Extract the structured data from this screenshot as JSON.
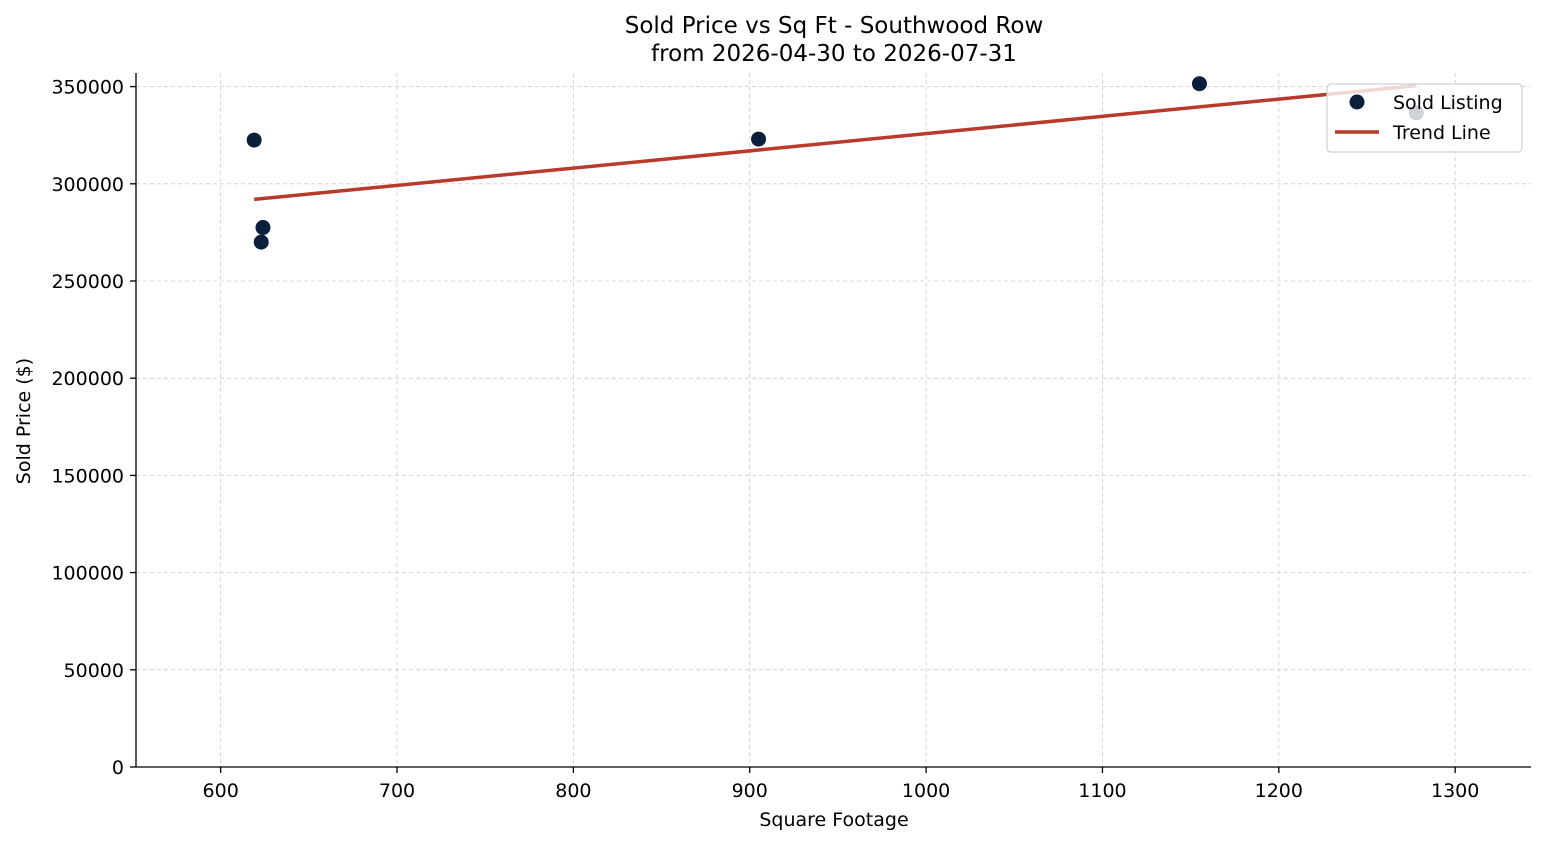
{
  "chart_data": {
    "type": "scatter",
    "title": "Sold Price vs Sq Ft - Southwood Row",
    "subtitle": "from 2026-04-30 to 2026-07-31",
    "xlabel": "Square Footage",
    "ylabel": "Sold Price ($)",
    "xlim": [
      552,
      1343
    ],
    "ylim": [
      0,
      357000
    ],
    "x_ticks": [
      600,
      700,
      800,
      900,
      1000,
      1100,
      1200,
      1300
    ],
    "y_ticks": [
      0,
      50000,
      100000,
      150000,
      200000,
      250000,
      300000,
      350000
    ],
    "x_tick_labels": [
      "600",
      "700",
      "800",
      "900",
      "1000",
      "1100",
      "1200",
      "1300"
    ],
    "y_tick_labels": [
      "0",
      "50000",
      "100000",
      "150000",
      "200000",
      "250000",
      "300000",
      "350000"
    ],
    "grid": true,
    "legend_position": "top-right",
    "series": [
      {
        "name": "Sold Listing",
        "kind": "scatter",
        "color": "#0b1f3a",
        "points": [
          {
            "x": 619,
            "y": 322500
          },
          {
            "x": 623,
            "y": 270000
          },
          {
            "x": 624,
            "y": 277500
          },
          {
            "x": 905,
            "y": 323000
          },
          {
            "x": 1155,
            "y": 351500
          },
          {
            "x": 1278,
            "y": 336500
          }
        ]
      },
      {
        "name": "Trend Line",
        "kind": "line",
        "color": "#b83a2b",
        "points": [
          {
            "x": 619,
            "y": 292000
          },
          {
            "x": 1278,
            "y": 350500
          }
        ]
      }
    ]
  }
}
